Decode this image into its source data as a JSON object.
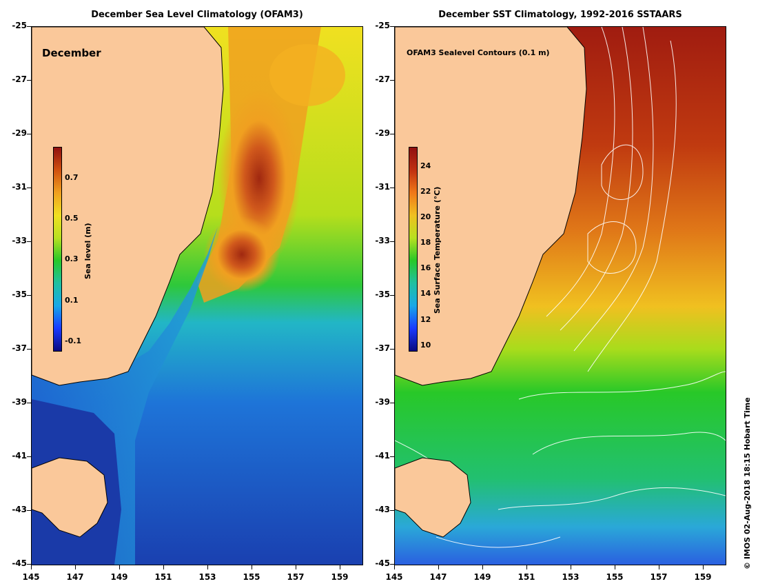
{
  "panels": [
    {
      "title": "December Sea Level Climatology (OFAM3)",
      "inset_label": "December",
      "colorbar_title": "Sea level (m)",
      "colorbar_ticks": [
        "0.7",
        "0.5",
        "0.3",
        "0.1",
        "-0.1"
      ],
      "colorbar_values": [
        0.7,
        0.5,
        0.3,
        0.1,
        -0.1
      ],
      "colorbar_range": [
        -0.15,
        0.85
      ]
    },
    {
      "title": "December SST Climatology, 1992-2016 SSTAARS",
      "inset_label": "OFAM3 Sealevel Contours (0.1 m)",
      "colorbar_title": "Sea Surface Temperature (°C)",
      "colorbar_ticks": [
        "24",
        "22",
        "20",
        "18",
        "16",
        "14",
        "12",
        "10"
      ],
      "colorbar_values": [
        24,
        22,
        20,
        18,
        16,
        14,
        12,
        10
      ],
      "colorbar_range": [
        9.5,
        25.5
      ]
    }
  ],
  "axes": {
    "lat_labels": [
      "-25",
      "-27",
      "-29",
      "-31",
      "-33",
      "-35",
      "-37",
      "-39",
      "-41",
      "-43",
      "-45"
    ],
    "lon_labels": [
      "145",
      "147",
      "149",
      "151",
      "153",
      "155",
      "157",
      "159"
    ]
  },
  "credit": "© IMOS 02-Aug-2018 18:15 Hobart Time",
  "colors": {
    "land": "#fac89a",
    "coast_line": "#000000",
    "contour": "#ffffff"
  }
}
